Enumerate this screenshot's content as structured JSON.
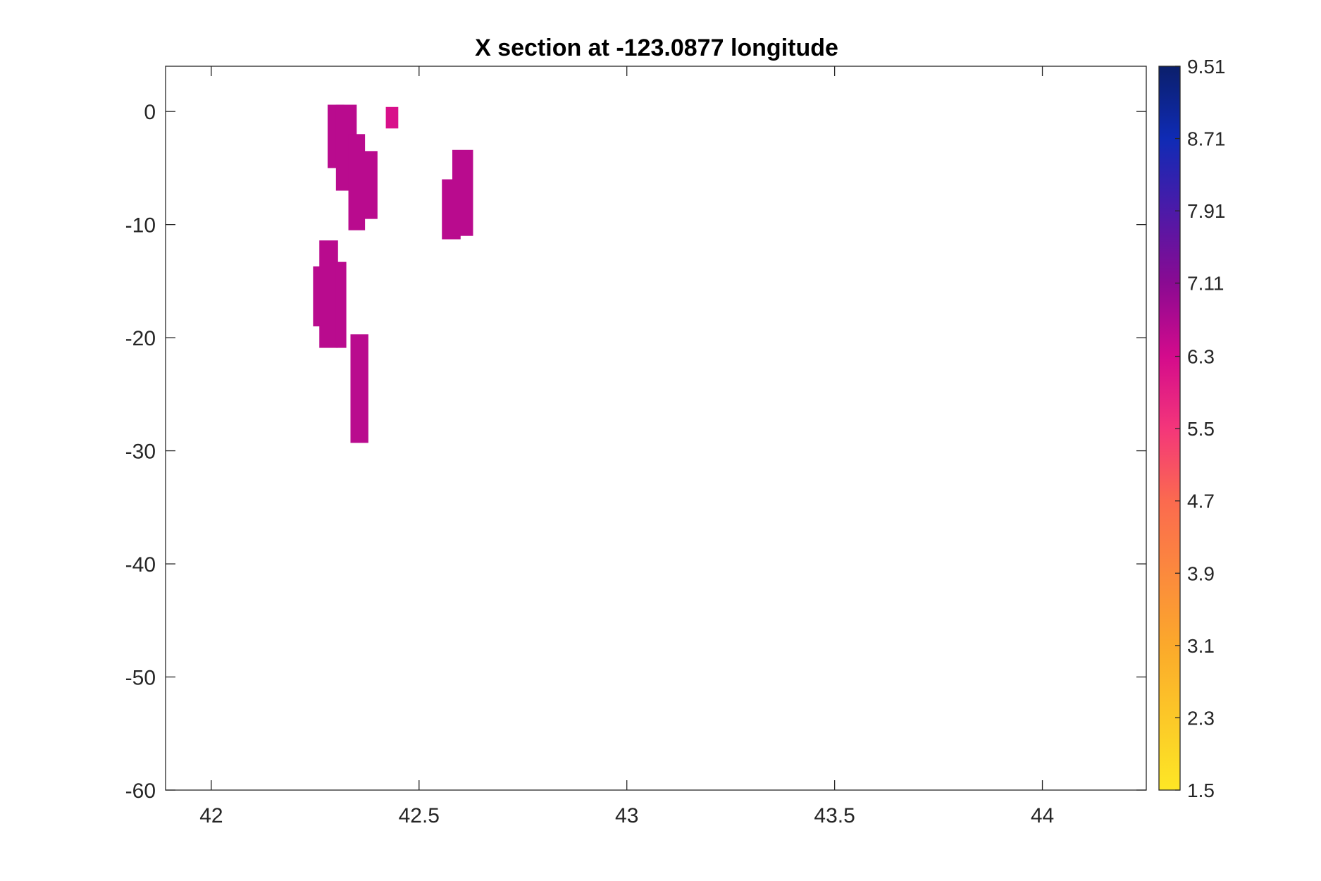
{
  "chart_data": {
    "type": "heatmap",
    "title": "X section at -123.0877 longitude",
    "xlabel": "",
    "ylabel": "",
    "xlim": [
      41.89,
      44.25
    ],
    "ylim": [
      -60,
      4
    ],
    "xticks": [
      42,
      42.5,
      43,
      43.5,
      44
    ],
    "xtick_labels": [
      "42",
      "42.5",
      "43",
      "43.5",
      "44"
    ],
    "yticks": [
      0,
      -10,
      -20,
      -30,
      -40,
      -50,
      -60
    ],
    "ytick_labels": [
      "0",
      "-10",
      "-20",
      "-30",
      "-40",
      "-50",
      "-60"
    ],
    "grid": false,
    "colorbar": {
      "range": [
        1.5,
        9.51
      ],
      "ticks": [
        9.51,
        8.71,
        7.91,
        7.11,
        6.3,
        5.5,
        4.7,
        3.9,
        3.1,
        2.3,
        1.5
      ],
      "tick_labels": [
        "9.51",
        "8.71",
        "7.91",
        "7.11",
        "6.3",
        "5.5",
        "4.7",
        "3.9",
        "3.1",
        "2.3",
        "1.5"
      ],
      "colormap": [
        {
          "v": 1.5,
          "color": "#fde725"
        },
        {
          "v": 3.1,
          "color": "#fba92b"
        },
        {
          "v": 4.7,
          "color": "#fb6a4f"
        },
        {
          "v": 5.5,
          "color": "#f4367a"
        },
        {
          "v": 6.3,
          "color": "#d40b8c"
        },
        {
          "v": 7.11,
          "color": "#8a0a92"
        },
        {
          "v": 7.91,
          "color": "#4c1aa8"
        },
        {
          "v": 8.71,
          "color": "#0f2bb5"
        },
        {
          "v": 9.51,
          "color": "#0b1f6b"
        }
      ]
    },
    "patches": [
      {
        "x0": 42.28,
        "x1": 42.32,
        "y0": -5.0,
        "y1": 0.6,
        "value": 6.6
      },
      {
        "x0": 42.3,
        "x1": 42.35,
        "y0": -7.0,
        "y1": 0.6,
        "value": 6.6
      },
      {
        "x0": 42.33,
        "x1": 42.37,
        "y0": -10.5,
        "y1": -2.0,
        "value": 6.6
      },
      {
        "x0": 42.36,
        "x1": 42.4,
        "y0": -9.5,
        "y1": -3.5,
        "value": 6.6
      },
      {
        "x0": 42.42,
        "x1": 42.45,
        "y0": -1.5,
        "y1": 0.4,
        "value": 6.2
      },
      {
        "x0": 42.555,
        "x1": 42.6,
        "y0": -11.3,
        "y1": -6.0,
        "value": 6.6
      },
      {
        "x0": 42.58,
        "x1": 42.63,
        "y0": -11.0,
        "y1": -3.4,
        "value": 6.6
      },
      {
        "x0": 42.245,
        "x1": 42.27,
        "y0": -19.0,
        "y1": -13.7,
        "value": 6.6
      },
      {
        "x0": 42.26,
        "x1": 42.305,
        "y0": -20.9,
        "y1": -11.4,
        "value": 6.6
      },
      {
        "x0": 42.3,
        "x1": 42.325,
        "y0": -20.9,
        "y1": -13.3,
        "value": 6.6
      },
      {
        "x0": 42.335,
        "x1": 42.378,
        "y0": -29.3,
        "y1": -19.7,
        "value": 6.6
      }
    ]
  }
}
